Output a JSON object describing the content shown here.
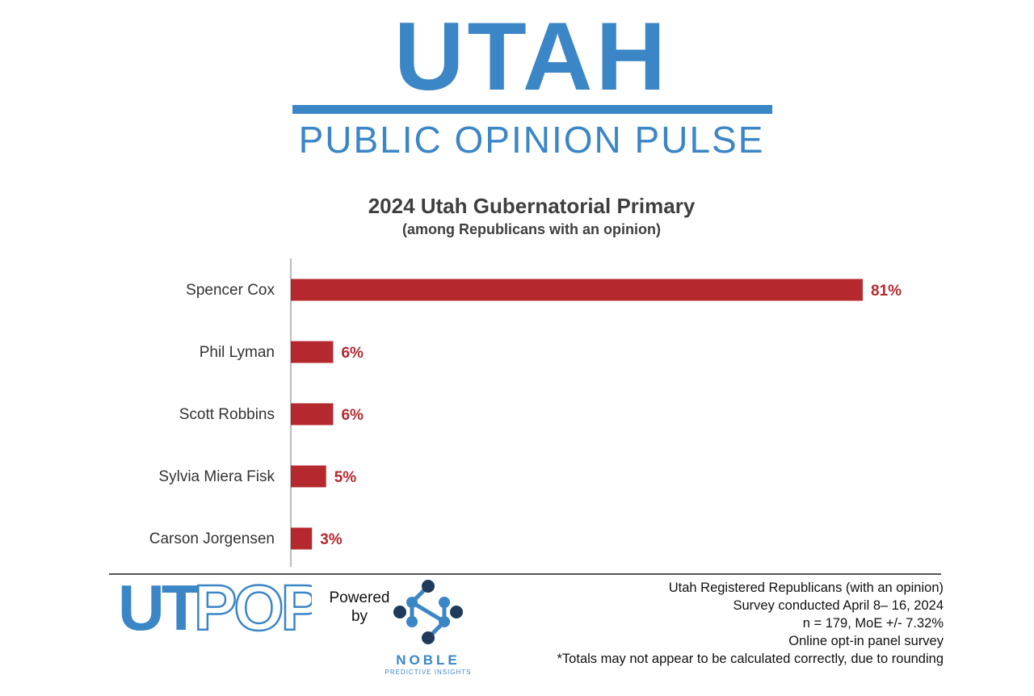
{
  "brand": {
    "title": "UTAH",
    "subtitle": "PUBLIC OPINION PULSE"
  },
  "chart_data": {
    "type": "bar",
    "orientation": "horizontal",
    "title": "2024 Utah Gubernatorial Primary",
    "subtitle": "(among Republicans with an opinion)",
    "categories": [
      "Spencer Cox",
      "Phil Lyman",
      "Scott Robbins",
      "Sylvia Miera Fisk",
      "Carson Jorgensen"
    ],
    "values": [
      81,
      6,
      6,
      5,
      3
    ],
    "labels": [
      "81%",
      "6%",
      "6%",
      "5%",
      "3%"
    ],
    "xlim": [
      0,
      100
    ],
    "xlabel": "",
    "ylabel": "",
    "grid": false,
    "bar_color": "#b5292e"
  },
  "footer": {
    "logo_text": {
      "part1": "UT",
      "part2": "POP"
    },
    "powered_by": {
      "line1": "Powered",
      "line2": "by"
    },
    "noble": {
      "name": "NOBLE",
      "tagline": "PREDICTIVE INSIGHTS"
    },
    "notes": [
      "Utah Registered Republicans (with an opinion)",
      "Survey conducted April 8– 16, 2024",
      "n = 179, MoE +/- 7.32%",
      "Online opt-in panel survey",
      "*Totals may not appear to be calculated correctly, due to rounding"
    ]
  },
  "colors": {
    "brand_blue": "#3b86c6",
    "navy": "#1f3a5a",
    "bar_red": "#b5292e"
  }
}
